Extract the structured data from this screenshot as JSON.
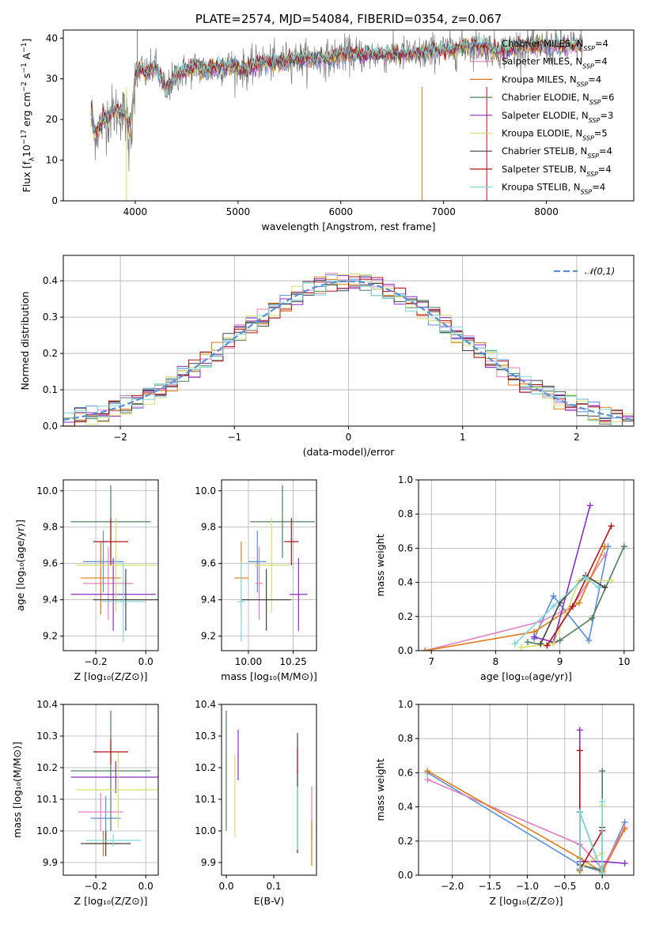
{
  "colors": {
    "Chabrier MILES": "#5b8fd6",
    "Salpeter MILES": "#e07fc0",
    "Kroupa MILES": "#e07a14",
    "Chabrier ELODIE": "#4f7f5a",
    "Salpeter ELODIE": "#8a2fc0",
    "Kroupa ELODIE": "#d6e070",
    "Chabrier STELIB": "#444444",
    "Salpeter STELIB": "#b0141c",
    "Kroupa STELIB": "#7fd8d8",
    "gaussian": "#5b8fd6"
  },
  "chart_data": [
    {
      "id": "spectrum",
      "type": "line",
      "title": "PLATE=2574, MJD=54084, FIBERID=0354, z=0.067",
      "xlabel": "wavelength [Angstrom, rest frame]",
      "ylabel": "Flux [f_λ10^-17 erg cm^-2 s^-1 A^-1]",
      "xlim": [
        3300,
        8850
      ],
      "ylim": [
        0,
        42
      ],
      "xticks": [
        4000,
        5000,
        6000,
        7000,
        8000
      ],
      "yticks": [
        0,
        10,
        20,
        30,
        40
      ],
      "grid": false,
      "legend_position": "top-right",
      "legend": [
        {
          "name": "Chabrier MILES",
          "nssp": "4"
        },
        {
          "name": "Salpeter MILES",
          "nssp": "4"
        },
        {
          "name": "Kroupa MILES",
          "nssp": "4"
        },
        {
          "name": "Chabrier ELODIE",
          "nssp": "6"
        },
        {
          "name": "Salpeter ELODIE",
          "nssp": "3"
        },
        {
          "name": "Kroupa ELODIE",
          "nssp": "5"
        },
        {
          "name": "Chabrier STELIB",
          "nssp": "4"
        },
        {
          "name": "Salpeter STELIB",
          "nssp": "4"
        },
        {
          "name": "Kroupa STELIB",
          "nssp": "4"
        }
      ],
      "data_series": "observed",
      "x": [
        3570,
        3600,
        3650,
        3700,
        3750,
        3800,
        3850,
        3900,
        3950,
        4000,
        4050,
        4100,
        4150,
        4200,
        4300,
        4400,
        4500,
        4600,
        4700,
        4800,
        4900,
        5000,
        5100,
        5200,
        5300,
        5400,
        5500,
        5600,
        5700,
        5800,
        5900,
        6000,
        6100,
        6200,
        6300,
        6400,
        6500,
        6600,
        6700,
        6800,
        6900,
        7000,
        7100,
        7200,
        7300,
        7400,
        7500,
        7600,
        7700,
        7800,
        7900,
        8000,
        8100,
        8200,
        8300
      ],
      "y": [
        22,
        17,
        18,
        20,
        21,
        22,
        22,
        21,
        18,
        30,
        33,
        31,
        32,
        33,
        27,
        31,
        32,
        33,
        32,
        33,
        33,
        33,
        32,
        34,
        34,
        34,
        35,
        35,
        35,
        35,
        35,
        36,
        36,
        36,
        36,
        36,
        36,
        36,
        36,
        36,
        37,
        37,
        37,
        38,
        38,
        38,
        37,
        37,
        38,
        38,
        38,
        38,
        38,
        38,
        38
      ]
    },
    {
      "id": "residuals",
      "type": "bar",
      "title": "",
      "xlabel": "(data-model)/error",
      "ylabel": "Normed distribution",
      "xlim": [
        -2.5,
        2.5
      ],
      "ylim": [
        0,
        0.47
      ],
      "xticks": [
        -2,
        -1,
        0,
        1,
        2
      ],
      "yticks": [
        0.0,
        0.1,
        0.2,
        0.3,
        0.4
      ],
      "grid": true,
      "legend_position": "top-right",
      "gaussian_label": "𝒩(0,1)",
      "bin_width": 0.1
    },
    {
      "id": "age_vs_Z",
      "type": "scatter",
      "xlabel": "Z [log₁₀(Z/Z⊙)]",
      "ylabel": "age  [log₁₀(age/yr)]",
      "xlim": [
        -0.33,
        0.05
      ],
      "ylim": [
        9.12,
        10.06
      ],
      "xticks": [
        -0.2,
        0.0
      ],
      "yticks": [
        9.2,
        9.4,
        9.6,
        9.8,
        10.0
      ],
      "grid": true,
      "points": [
        {
          "model": "Chabrier MILES",
          "x": -0.17,
          "xerr": 0.08,
          "y": 9.61,
          "yerr": 0.17
        },
        {
          "model": "Salpeter MILES",
          "x": -0.15,
          "xerr": 0.1,
          "y": 9.49,
          "yerr": 0.2
        },
        {
          "model": "Kroupa MILES",
          "x": -0.18,
          "xerr": 0.08,
          "y": 9.52,
          "yerr": 0.2
        },
        {
          "model": "Chabrier ELODIE",
          "x": -0.14,
          "xerr": 0.16,
          "y": 9.83,
          "yerr": 0.2
        },
        {
          "model": "Salpeter ELODIE",
          "x": -0.13,
          "xerr": 0.17,
          "y": 9.43,
          "yerr": 0.2
        },
        {
          "model": "Kroupa ELODIE",
          "x": -0.12,
          "xerr": 0.16,
          "y": 9.59,
          "yerr": 0.26
        },
        {
          "model": "Chabrier STELIB",
          "x": -0.08,
          "xerr": 0.13,
          "y": 9.4,
          "yerr": 0.17
        },
        {
          "model": "Salpeter STELIB",
          "x": -0.14,
          "xerr": 0.07,
          "y": 9.72,
          "yerr": 0.13
        },
        {
          "model": "Kroupa STELIB",
          "x": -0.09,
          "xerr": 0.09,
          "y": 9.39,
          "yerr": 0.22
        }
      ]
    },
    {
      "id": "age_vs_mass",
      "type": "scatter",
      "xlabel": "mass [log₁₀(M/M⊙)]",
      "ylabel": "",
      "xlim": [
        9.85,
        10.38
      ],
      "ylim": [
        9.12,
        10.06
      ],
      "xticks": [
        10.0,
        10.25
      ],
      "yticks": [
        9.2,
        9.4,
        9.6,
        9.8,
        10.0
      ],
      "grid": true,
      "points": [
        {
          "model": "Chabrier MILES",
          "x": 10.05,
          "xerr": 0.05,
          "y": 9.61,
          "yerr": 0.17
        },
        {
          "model": "Salpeter MILES",
          "x": 10.06,
          "xerr": 0.02,
          "y": 9.49,
          "yerr": 0.2
        },
        {
          "model": "Kroupa MILES",
          "x": 9.96,
          "xerr": 0.04,
          "y": 9.52,
          "yerr": 0.2
        },
        {
          "model": "Chabrier ELODIE",
          "x": 10.19,
          "xerr": 0.18,
          "y": 9.83,
          "yerr": 0.2
        },
        {
          "model": "Salpeter ELODIE",
          "x": 10.28,
          "xerr": 0.05,
          "y": 9.43,
          "yerr": 0.2
        },
        {
          "model": "Kroupa ELODIE",
          "x": 10.13,
          "xerr": 0.1,
          "y": 9.59,
          "yerr": 0.26
        },
        {
          "model": "Chabrier STELIB",
          "x": 10.1,
          "xerr": 0.14,
          "y": 9.4,
          "yerr": 0.17
        },
        {
          "model": "Salpeter STELIB",
          "x": 10.24,
          "xerr": 0.04,
          "y": 9.72,
          "yerr": 0.13
        },
        {
          "model": "Kroupa STELIB",
          "x": 9.96,
          "xerr": 0.02,
          "y": 9.39,
          "yerr": 0.22
        }
      ]
    },
    {
      "id": "weight_vs_age",
      "type": "line",
      "xlabel": "age  [log₁₀(age/yr)]",
      "ylabel": "mass weight",
      "xlim": [
        6.8,
        10.15
      ],
      "ylim": [
        0,
        1
      ],
      "xticks": [
        7,
        8,
        9,
        10
      ],
      "yticks": [
        0.0,
        0.2,
        0.4,
        0.6,
        0.8,
        1.0
      ],
      "grid": true,
      "series": [
        {
          "model": "Chabrier MILES",
          "x": [
            8.6,
            8.9,
            9.45,
            9.75
          ],
          "y": [
            0.07,
            0.32,
            0.06,
            0.61
          ]
        },
        {
          "model": "Salpeter MILES",
          "x": [
            6.9,
            8.7,
            9.2,
            9.7
          ],
          "y": [
            0.0,
            0.17,
            0.26,
            0.56
          ]
        },
        {
          "model": "Kroupa MILES",
          "x": [
            6.9,
            8.6,
            9.3,
            9.7
          ],
          "y": [
            0.0,
            0.11,
            0.28,
            0.61
          ]
        },
        {
          "model": "Chabrier ELODIE",
          "x": [
            8.5,
            8.8,
            9.0,
            9.5,
            10.0
          ],
          "y": [
            0.05,
            0.03,
            0.06,
            0.19,
            0.61
          ]
        },
        {
          "model": "Salpeter ELODIE",
          "x": [
            8.6,
            8.9,
            9.47
          ],
          "y": [
            0.08,
            0.05,
            0.85
          ]
        },
        {
          "model": "Kroupa ELODIE",
          "x": [
            8.4,
            8.9,
            9.3,
            9.8
          ],
          "y": [
            0.02,
            0.04,
            0.41,
            0.41
          ]
        },
        {
          "model": "Chabrier STELIB",
          "x": [
            8.7,
            9.0,
            9.4,
            9.7
          ],
          "y": [
            0.04,
            0.28,
            0.44,
            0.37
          ]
        },
        {
          "model": "Salpeter STELIB",
          "x": [
            8.8,
            9.2,
            9.8
          ],
          "y": [
            0.03,
            0.26,
            0.73
          ]
        },
        {
          "model": "Kroupa STELIB",
          "x": [
            8.3,
            8.9,
            9.4,
            9.6
          ],
          "y": [
            0.04,
            0.26,
            0.43,
            0.37
          ]
        }
      ]
    },
    {
      "id": "mass_vs_Z",
      "type": "scatter",
      "xlabel": "Z [log₁₀(Z/Z⊙)]",
      "ylabel": "mass [log₁₀(M/M⊙)]",
      "xlim": [
        -0.33,
        0.05
      ],
      "ylim": [
        9.86,
        10.4
      ],
      "xticks": [
        -0.2,
        0.0
      ],
      "yticks": [
        9.9,
        10.0,
        10.1,
        10.2,
        10.3,
        10.4
      ],
      "grid": true,
      "points": [
        {
          "model": "Chabrier MILES",
          "x": -0.16,
          "xerr": 0.06,
          "y": 10.04,
          "yerr": 0.07
        },
        {
          "model": "Salpeter MILES",
          "x": -0.18,
          "xerr": 0.09,
          "y": 10.06,
          "yerr": 0.06
        },
        {
          "model": "Kroupa MILES",
          "x": -0.17,
          "xerr": 0.07,
          "y": 9.96,
          "yerr": 0.04
        },
        {
          "model": "Chabrier ELODIE",
          "x": -0.14,
          "xerr": 0.16,
          "y": 10.19,
          "yerr": 0.19
        },
        {
          "model": "Salpeter ELODIE",
          "x": -0.12,
          "xerr": 0.18,
          "y": 10.17,
          "yerr": 0.05
        },
        {
          "model": "Kroupa ELODIE",
          "x": -0.11,
          "xerr": 0.17,
          "y": 10.13,
          "yerr": 0.12
        },
        {
          "model": "Chabrier STELIB",
          "x": -0.16,
          "xerr": 0.1,
          "y": 9.96,
          "yerr": 0.04
        },
        {
          "model": "Salpeter STELIB",
          "x": -0.14,
          "xerr": 0.07,
          "y": 10.25,
          "yerr": 0.04
        },
        {
          "model": "Kroupa STELIB",
          "x": -0.13,
          "xerr": 0.11,
          "y": 9.97,
          "yerr": 0.02
        }
      ]
    },
    {
      "id": "mass_vs_ebv",
      "type": "scatter",
      "xlabel": "E(B-V)",
      "ylabel": "",
      "xlim": [
        -0.01,
        0.19
      ],
      "ylim": [
        9.86,
        10.4
      ],
      "xticks": [
        0.0,
        0.1
      ],
      "yticks": [
        9.9,
        10.0,
        10.1,
        10.2,
        10.3,
        10.4
      ],
      "grid": false,
      "points": [
        {
          "model": "Chabrier MILES",
          "x": 0.15,
          "xerr": 0.0,
          "y": 10.06,
          "yerr": 0.13
        },
        {
          "model": "Salpeter MILES",
          "x": 0.18,
          "xerr": 0.0,
          "y": 10.06,
          "yerr": 0.08
        },
        {
          "model": "Kroupa MILES",
          "x": 0.18,
          "xerr": 0.0,
          "y": 9.96,
          "yerr": 0.07
        },
        {
          "model": "Chabrier ELODIE",
          "x": 0.0,
          "xerr": 0.0,
          "y": 10.19,
          "yerr": 0.19
        },
        {
          "model": "Salpeter ELODIE",
          "x": 0.025,
          "xerr": 0.0,
          "y": 10.24,
          "yerr": 0.08
        },
        {
          "model": "Kroupa ELODIE",
          "x": 0.018,
          "xerr": 0.0,
          "y": 10.11,
          "yerr": 0.13
        },
        {
          "model": "Chabrier STELIB",
          "x": 0.15,
          "xerr": 0.0,
          "y": 10.12,
          "yerr": 0.19
        },
        {
          "model": "Salpeter STELIB",
          "x": 0.15,
          "xerr": 0.0,
          "y": 10.22,
          "yerr": 0.04
        },
        {
          "model": "Kroupa STELIB",
          "x": 0.15,
          "xerr": 0.0,
          "y": 10.04,
          "yerr": 0.1
        }
      ]
    },
    {
      "id": "weight_vs_Z",
      "type": "line",
      "xlabel": "Z [log₁₀(Z/Z⊙)]",
      "ylabel": "mass weight",
      "xlim": [
        -2.45,
        0.42
      ],
      "ylim": [
        0,
        1
      ],
      "xticks": [
        -2.0,
        -1.5,
        -1.0,
        -0.5,
        0.0
      ],
      "yticks": [
        0.0,
        0.2,
        0.4,
        0.6,
        0.8,
        1.0
      ],
      "grid": true,
      "series": [
        {
          "model": "Chabrier MILES",
          "x": [
            -2.33,
            -0.3,
            0.0,
            0.3
          ],
          "y": [
            0.6,
            0.06,
            0.02,
            0.31
          ]
        },
        {
          "model": "Salpeter MILES",
          "x": [
            -2.33,
            -0.3,
            0.0,
            0.3
          ],
          "y": [
            0.56,
            0.18,
            0.04,
            0.28
          ]
        },
        {
          "model": "Kroupa MILES",
          "x": [
            -2.33,
            -0.3,
            0.0,
            0.3
          ],
          "y": [
            0.61,
            0.1,
            0.02,
            0.27
          ]
        },
        {
          "model": "Chabrier ELODIE",
          "x": [
            -0.3,
            -0.3,
            0.0,
            0.0
          ],
          "y": [
            0.37,
            0.06,
            0.03,
            0.61
          ]
        },
        {
          "model": "Salpeter ELODIE",
          "x": [
            -0.3,
            -0.3,
            0.0,
            0.3
          ],
          "y": [
            0.85,
            0.08,
            0.08,
            0.07
          ]
        },
        {
          "model": "Kroupa ELODIE",
          "x": [
            -0.3,
            -0.3,
            0.0,
            0.0
          ],
          "y": [
            0.02,
            0.04,
            0.13,
            0.41
          ]
        },
        {
          "model": "Chabrier STELIB",
          "x": [
            -0.3,
            -0.3,
            0.0,
            0.0
          ],
          "y": [
            0.04,
            0.37,
            0.01,
            0.28
          ]
        },
        {
          "model": "Salpeter STELIB",
          "x": [
            -0.3,
            -0.3,
            0.0
          ],
          "y": [
            0.73,
            0.03,
            0.26
          ]
        },
        {
          "model": "Kroupa STELIB",
          "x": [
            -0.3,
            -0.3,
            0.0,
            0.0
          ],
          "y": [
            0.04,
            0.37,
            0.01,
            0.43
          ]
        }
      ]
    }
  ]
}
